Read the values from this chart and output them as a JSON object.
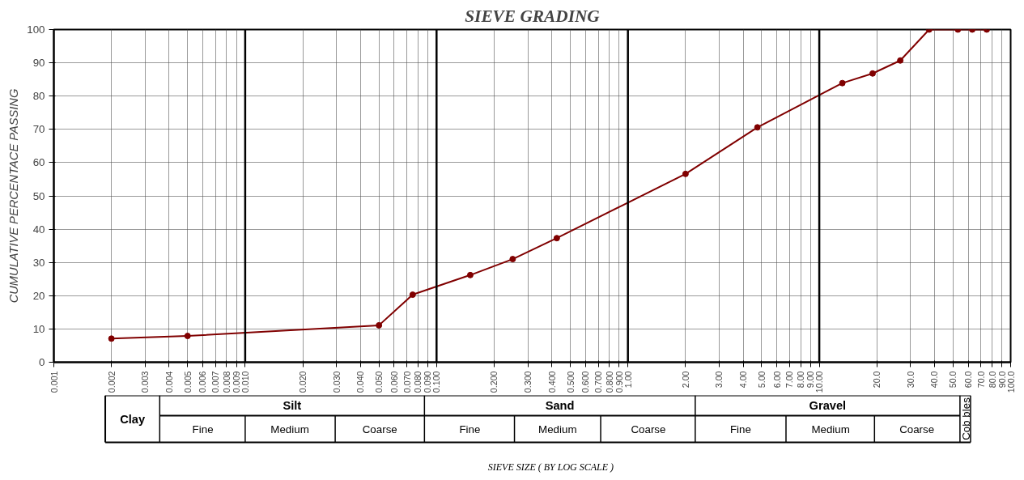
{
  "chart_data": {
    "type": "line",
    "title": "SIEVE GRADING",
    "ylabel": "CUMULATIVE PERCENTACE PASSING",
    "log": "x",
    "grid": true,
    "marker": "circle",
    "line_style": "solid",
    "xlim": [
      0.001,
      100
    ],
    "ylim": [
      0,
      100
    ],
    "xticks": [
      0.001,
      0.002,
      0.003,
      0.004,
      0.005,
      0.006,
      0.007,
      0.008,
      0.009,
      {
        "value": 0.01,
        "label": "0.010"
      },
      {
        "value": 0.02,
        "label": "0.020"
      },
      {
        "value": 0.03,
        "label": "0.030"
      },
      {
        "value": 0.04,
        "label": "0.040"
      },
      {
        "value": 0.05,
        "label": "0.050"
      },
      {
        "value": 0.06,
        "label": "0.060"
      },
      {
        "value": 0.07,
        "label": "0.070"
      },
      {
        "value": 0.08,
        "label": "0.080"
      },
      {
        "value": 0.09,
        "label": "0.090"
      },
      {
        "value": 0.1,
        "label": "0.100"
      },
      {
        "value": 0.2,
        "label": "0.200"
      },
      {
        "value": 0.3,
        "label": "0.300"
      },
      {
        "value": 0.4,
        "label": "0.400"
      },
      {
        "value": 0.5,
        "label": "0.500"
      },
      {
        "value": 0.6,
        "label": "0.600"
      },
      {
        "value": 0.7,
        "label": "0.700"
      },
      {
        "value": 0.8,
        "label": "0.800"
      },
      {
        "value": 0.9,
        "label": "0.900"
      },
      {
        "value": 1,
        "label": "1.00"
      },
      {
        "value": 2,
        "label": "2.00"
      },
      {
        "value": 3,
        "label": "3.00"
      },
      {
        "value": 4,
        "label": "4.00"
      },
      {
        "value": 5,
        "label": "5.00"
      },
      {
        "value": 6,
        "label": "6.00"
      },
      {
        "value": 7,
        "label": "7.00"
      },
      {
        "value": 8,
        "label": "8.00"
      },
      {
        "value": 9,
        "label": "9.00"
      },
      {
        "value": 10,
        "label": "10.00"
      },
      {
        "value": 20,
        "label": "20.0"
      },
      {
        "value": 30,
        "label": "30.0"
      },
      {
        "value": 40,
        "label": "40.0"
      },
      {
        "value": 50,
        "label": "50.0"
      },
      {
        "value": 60,
        "label": "60.0"
      },
      {
        "value": 70,
        "label": "70.0"
      },
      {
        "value": 80,
        "label": "80.0"
      },
      {
        "value": 90,
        "label": "90.0"
      },
      {
        "value": 100,
        "label": "100.0"
      }
    ],
    "yticks": [
      0,
      10,
      20,
      30,
      40,
      50,
      60,
      70,
      80,
      90,
      100
    ],
    "x": [
      0.002,
      0.005,
      0.05,
      0.075,
      0.15,
      0.25,
      0.425,
      2,
      4.75,
      13.2,
      19,
      26.5,
      37.5,
      53,
      63,
      75
    ],
    "series": [
      {
        "color": "#800000",
        "values": [
          7.1,
          7.9,
          11.1,
          20.3,
          26.2,
          31,
          37.3,
          56.6,
          70.6,
          83.9,
          86.8,
          90.7,
          100,
          100,
          100,
          100
        ]
      }
    ],
    "annotations": [
      "Clay",
      "Silt",
      "Sand",
      "Gravel",
      "Cob bles",
      "Fine",
      "Medium",
      "Coarse",
      "Fine",
      "Medium",
      "Coarse",
      "Fine",
      "Medium",
      "Coarse",
      "SIEVE SIZE ( BY LOG SCALE )"
    ]
  }
}
